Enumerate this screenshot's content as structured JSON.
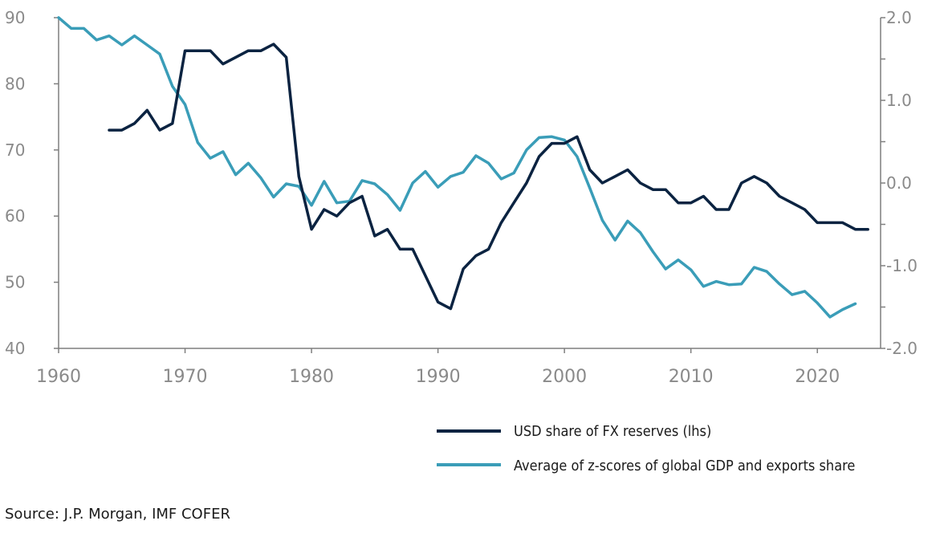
{
  "chart_data": {
    "type": "line",
    "title": "",
    "source": "Source: J.P. Morgan, IMF COFER",
    "x_ticks": [
      "1960",
      "1970",
      "1980",
      "1990",
      "2000",
      "2010",
      "2020"
    ],
    "xlim": [
      1960,
      2025
    ],
    "y_left": {
      "ticks": [
        "40",
        "50",
        "60",
        "70",
        "80",
        "90"
      ],
      "ylim": [
        40,
        90
      ]
    },
    "y_right": {
      "ticks": [
        "-2.0",
        "-1.0",
        "0.0",
        "1.0",
        "2.0"
      ],
      "ylim": [
        -2,
        2
      ]
    },
    "colors": {
      "usd": "#0b2341",
      "zscore": "#3a9db8",
      "axis": "#7f7f7f"
    },
    "series": [
      {
        "name": "USD share of FX reserves (lhs)",
        "axis": "left",
        "x": [
          1964,
          1965,
          1966,
          1967,
          1968,
          1969,
          1970,
          1971,
          1972,
          1973,
          1974,
          1975,
          1976,
          1977,
          1978,
          1979,
          1980,
          1981,
          1982,
          1983,
          1984,
          1985,
          1986,
          1987,
          1988,
          1989,
          1990,
          1991,
          1992,
          1993,
          1994,
          1995,
          1996,
          1997,
          1998,
          1999,
          2000,
          2001,
          2002,
          2003,
          2004,
          2005,
          2006,
          2007,
          2008,
          2009,
          2010,
          2011,
          2012,
          2013,
          2014,
          2015,
          2016,
          2017,
          2018,
          2019,
          2020,
          2021,
          2022,
          2023,
          2024
        ],
        "values": [
          73,
          73,
          74,
          76,
          73,
          74,
          85,
          85,
          85,
          83,
          84,
          85,
          85,
          86,
          84,
          66,
          58,
          61,
          60,
          62,
          63,
          57,
          58,
          55,
          55,
          51,
          47,
          46,
          52,
          54,
          55,
          59,
          62,
          65,
          69,
          71,
          71,
          72,
          67,
          65,
          66,
          67,
          65,
          64,
          64,
          62,
          62,
          63,
          61,
          61,
          65,
          66,
          65,
          63,
          62,
          61,
          59,
          59,
          59,
          58,
          58
        ]
      },
      {
        "name": "Average of z-scores of global GDP and exports share",
        "axis": "right",
        "x": [
          1960,
          1961,
          1962,
          1963,
          1964,
          1965,
          1966,
          1967,
          1968,
          1969,
          1970,
          1971,
          1972,
          1973,
          1974,
          1975,
          1976,
          1977,
          1978,
          1979,
          1980,
          1981,
          1982,
          1983,
          1984,
          1985,
          1986,
          1987,
          1988,
          1989,
          1990,
          1991,
          1992,
          1993,
          1994,
          1995,
          1996,
          1997,
          1998,
          1999,
          2000,
          2001,
          2002,
          2003,
          2004,
          2005,
          2006,
          2007,
          2008,
          2009,
          2010,
          2011,
          2012,
          2013,
          2014,
          2015,
          2016,
          2017,
          2018,
          2019,
          2020,
          2021,
          2022,
          2023
        ],
        "values": [
          2.0,
          1.87,
          1.87,
          1.73,
          1.78,
          1.67,
          1.78,
          1.67,
          1.56,
          1.17,
          0.95,
          0.49,
          0.3,
          0.38,
          0.1,
          0.24,
          0.06,
          -0.17,
          -0.01,
          -0.04,
          -0.27,
          0.02,
          -0.24,
          -0.22,
          0.03,
          -0.01,
          -0.14,
          -0.33,
          0.0,
          0.14,
          -0.05,
          0.08,
          0.13,
          0.33,
          0.24,
          0.05,
          0.12,
          0.4,
          0.55,
          0.56,
          0.52,
          0.32,
          -0.06,
          -0.45,
          -0.69,
          -0.46,
          -0.6,
          -0.83,
          -1.04,
          -0.93,
          -1.05,
          -1.25,
          -1.19,
          -1.23,
          -1.22,
          -1.02,
          -1.07,
          -1.22,
          -1.35,
          -1.31,
          -1.45,
          -1.62,
          -1.53,
          -1.46
        ]
      }
    ]
  }
}
